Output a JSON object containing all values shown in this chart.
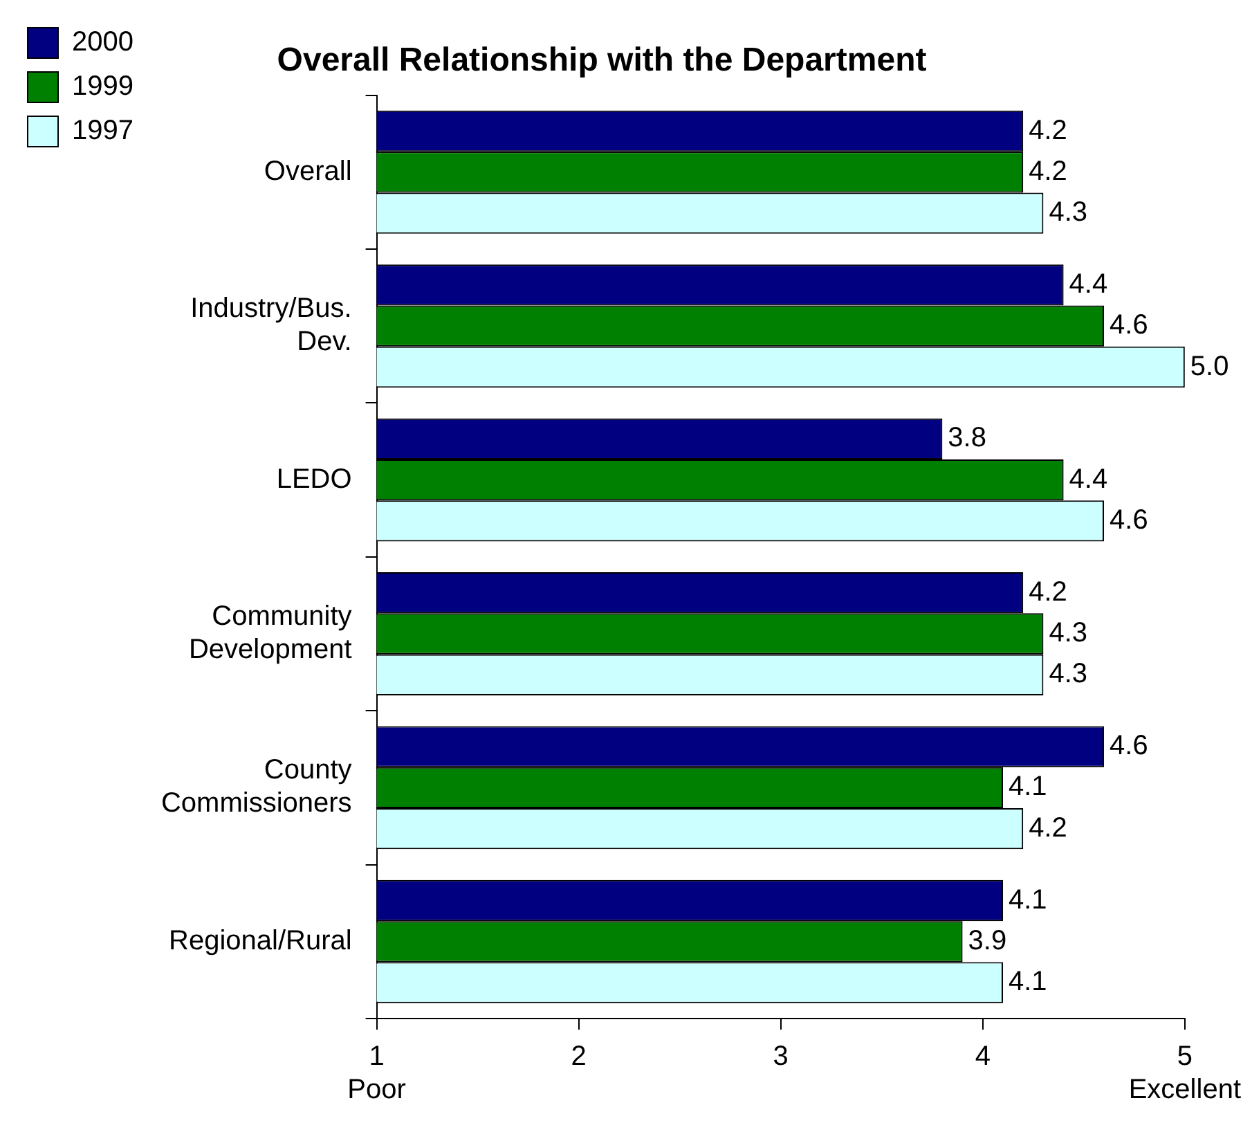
{
  "chart_data": {
    "type": "bar",
    "orientation": "horizontal",
    "title": "Overall Relationship with the Department",
    "categories": [
      "Overall",
      "Industry/Bus. Dev.",
      "LEDO",
      "Community Development",
      "County Commissioners",
      "Regional/Rural"
    ],
    "series": [
      {
        "name": "2000",
        "color": "#000080",
        "values": [
          4.2,
          4.4,
          3.8,
          4.2,
          4.6,
          4.1
        ],
        "value_labels": [
          "4.2",
          "4.4",
          "3.8",
          "4.2",
          "4.6",
          "4.1"
        ]
      },
      {
        "name": "1999",
        "color": "#008000",
        "values": [
          4.2,
          4.6,
          4.4,
          4.3,
          4.1,
          3.9
        ],
        "value_labels": [
          "4.2",
          "4.6",
          "4.4",
          "4.3",
          "4.1",
          "3.9"
        ]
      },
      {
        "name": "1997",
        "color": "#ccffff",
        "values": [
          4.3,
          5.0,
          4.6,
          4.3,
          4.2,
          4.1
        ],
        "value_labels": [
          "4.3",
          "5.0",
          "4.6",
          "4.3",
          "4.2",
          "4.1"
        ]
      }
    ],
    "xlim": [
      1,
      5
    ],
    "xticks": [
      {
        "value": 1,
        "label": "1\nPoor"
      },
      2,
      3,
      4,
      {
        "value": 5,
        "label": "5\nExcellent"
      }
    ],
    "grid": false,
    "legend": "top left"
  }
}
